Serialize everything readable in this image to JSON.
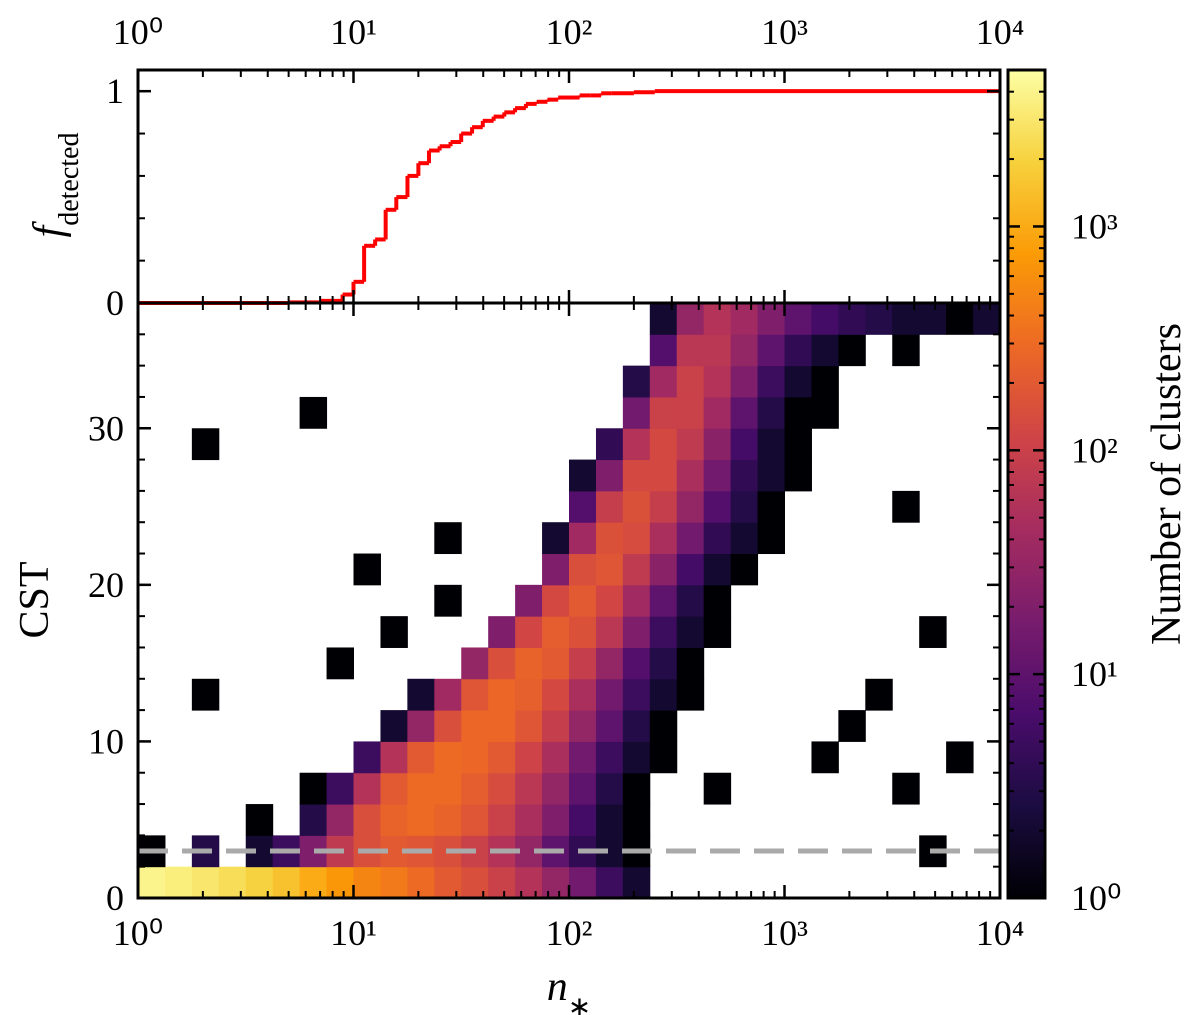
{
  "chart_data": [
    {
      "type": "step",
      "xscale": "log",
      "xlim": [
        1,
        10000
      ],
      "xticks": [
        {
          "value": 1,
          "label": "10⁰"
        },
        {
          "value": 10,
          "label": "10¹"
        },
        {
          "value": 100,
          "label": "10²"
        },
        {
          "value": 1000,
          "label": "10³"
        },
        {
          "value": 10000,
          "label": "10⁴"
        }
      ],
      "ylim": [
        0,
        1.1
      ],
      "yticks": [
        0,
        1
      ],
      "yminor": 5,
      "ylabel": "f",
      "ylabel_sub": "detected",
      "x": [
        1,
        5,
        7,
        8.9,
        10,
        11.2,
        12.6,
        14.1,
        15.8,
        17.8,
        20,
        22.4,
        25.1,
        28.2,
        31.6,
        35.5,
        39.8,
        44.7,
        50.1,
        56.2,
        63.1,
        70.8,
        79.4,
        89.1,
        100,
        112,
        126,
        141,
        158,
        200,
        250,
        10000
      ],
      "values": [
        0,
        0.003,
        0.01,
        0.04,
        0.1,
        0.27,
        0.3,
        0.44,
        0.5,
        0.6,
        0.66,
        0.72,
        0.74,
        0.76,
        0.8,
        0.83,
        0.86,
        0.88,
        0.9,
        0.92,
        0.94,
        0.95,
        0.96,
        0.97,
        0.97,
        0.98,
        0.98,
        0.99,
        0.99,
        0.995,
        1,
        1
      ],
      "color": "#ff0000"
    },
    {
      "type": "heatmap",
      "xscale": "log",
      "xlim": [
        1,
        10000
      ],
      "xticks": [
        {
          "value": 1,
          "label": "10⁰"
        },
        {
          "value": 10,
          "label": "10¹"
        },
        {
          "value": 100,
          "label": "10²"
        },
        {
          "value": 1000,
          "label": "10³"
        },
        {
          "value": 10000,
          "label": "10⁴"
        }
      ],
      "xlabel": "n",
      "xlabel_sub": "∗",
      "ylim": [
        0,
        38
      ],
      "yticks": [
        0,
        10,
        20,
        30
      ],
      "yminor": 5,
      "ylabel": "CST",
      "hline": 3,
      "hline_color": "#aaaaaa",
      "xbins": [
        1,
        1.334,
        1.778,
        2.371,
        3.162,
        4.217,
        5.623,
        7.499,
        10,
        13.34,
        17.78,
        23.71,
        31.62,
        42.17,
        56.23,
        74.99,
        100,
        133.4,
        177.8,
        237.1,
        316.2,
        421.7,
        562.3,
        749.9,
        1000,
        1334,
        1778,
        2371,
        3162,
        4217,
        5623,
        7499,
        10000
      ],
      "ybins": [
        0,
        2,
        4,
        6,
        8,
        10,
        12,
        14,
        16,
        18,
        20,
        22,
        24,
        26,
        28,
        30,
        32,
        34,
        36,
        38
      ],
      "counts": [
        [
          4000,
          3500,
          3000,
          2500,
          2000,
          1500,
          1000,
          700,
          500,
          400,
          300,
          200,
          150,
          100,
          60,
          30,
          15,
          5,
          2,
          null,
          null,
          null,
          null,
          null,
          null,
          null,
          null,
          null,
          null,
          null,
          null,
          null
        ],
        [
          1,
          null,
          3,
          null,
          2,
          5,
          20,
          80,
          150,
          200,
          180,
          150,
          100,
          60,
          30,
          10,
          4,
          2,
          1,
          null,
          null,
          null,
          null,
          null,
          null,
          null,
          null,
          null,
          null,
          1,
          null,
          null
        ],
        [
          null,
          null,
          null,
          null,
          1,
          null,
          3,
          30,
          150,
          250,
          300,
          250,
          180,
          100,
          50,
          20,
          6,
          2,
          1,
          null,
          null,
          null,
          null,
          null,
          null,
          null,
          null,
          null,
          null,
          null,
          null,
          null
        ],
        [
          null,
          null,
          null,
          null,
          null,
          null,
          1,
          5,
          60,
          200,
          300,
          300,
          220,
          140,
          70,
          30,
          10,
          3,
          1,
          null,
          null,
          1,
          null,
          null,
          null,
          null,
          null,
          null,
          1,
          null,
          null,
          null
        ],
        [
          null,
          null,
          null,
          null,
          null,
          null,
          null,
          null,
          5,
          60,
          200,
          300,
          280,
          200,
          110,
          50,
          15,
          5,
          2,
          1,
          null,
          null,
          null,
          null,
          null,
          1,
          null,
          null,
          null,
          null,
          1,
          null
        ],
        [
          null,
          null,
          null,
          null,
          null,
          null,
          null,
          null,
          null,
          2,
          30,
          150,
          280,
          280,
          180,
          90,
          30,
          10,
          3,
          1,
          null,
          null,
          null,
          null,
          null,
          null,
          1,
          null,
          null,
          null,
          null,
          null
        ],
        [
          null,
          null,
          1,
          null,
          null,
          null,
          null,
          null,
          null,
          null,
          2,
          40,
          180,
          280,
          230,
          130,
          50,
          15,
          5,
          2,
          1,
          null,
          null,
          null,
          null,
          null,
          null,
          1,
          null,
          null,
          null,
          null
        ],
        [
          null,
          null,
          null,
          null,
          null,
          null,
          null,
          1,
          null,
          null,
          null,
          null,
          30,
          150,
          250,
          200,
          90,
          30,
          8,
          3,
          1,
          null,
          null,
          null,
          null,
          null,
          null,
          null,
          null,
          null,
          null,
          null
        ],
        [
          null,
          null,
          null,
          null,
          null,
          null,
          null,
          null,
          null,
          1,
          null,
          null,
          null,
          20,
          120,
          220,
          160,
          70,
          20,
          5,
          2,
          1,
          null,
          null,
          null,
          null,
          null,
          null,
          null,
          1,
          null,
          null
        ],
        [
          null,
          null,
          null,
          null,
          null,
          null,
          null,
          null,
          null,
          null,
          null,
          1,
          null,
          null,
          20,
          130,
          200,
          120,
          40,
          10,
          3,
          1,
          null,
          null,
          null,
          null,
          null,
          null,
          null,
          null,
          null,
          null
        ],
        [
          null,
          null,
          null,
          null,
          null,
          null,
          null,
          null,
          1,
          null,
          null,
          null,
          null,
          null,
          null,
          20,
          150,
          180,
          80,
          25,
          6,
          2,
          1,
          null,
          null,
          null,
          null,
          null,
          null,
          null,
          null,
          null
        ],
        [
          null,
          null,
          null,
          null,
          null,
          null,
          null,
          null,
          null,
          null,
          null,
          1,
          null,
          null,
          null,
          2,
          40,
          160,
          140,
          50,
          15,
          4,
          2,
          1,
          null,
          null,
          null,
          null,
          null,
          null,
          null,
          null
        ],
        [
          null,
          null,
          null,
          null,
          null,
          null,
          null,
          null,
          null,
          null,
          null,
          null,
          null,
          null,
          null,
          null,
          8,
          90,
          160,
          90,
          30,
          8,
          3,
          1,
          null,
          null,
          null,
          null,
          1,
          null,
          null,
          null
        ],
        [
          null,
          null,
          null,
          null,
          null,
          null,
          null,
          null,
          null,
          null,
          null,
          null,
          null,
          null,
          null,
          null,
          2,
          20,
          130,
          130,
          50,
          15,
          4,
          2,
          1,
          null,
          null,
          null,
          null,
          null,
          null,
          null
        ],
        [
          null,
          null,
          1,
          null,
          null,
          null,
          null,
          null,
          null,
          null,
          null,
          null,
          null,
          null,
          null,
          null,
          null,
          4,
          60,
          130,
          80,
          25,
          6,
          2,
          1,
          null,
          null,
          null,
          null,
          null,
          null,
          null
        ],
        [
          null,
          null,
          null,
          null,
          null,
          null,
          1,
          null,
          null,
          null,
          null,
          null,
          null,
          null,
          null,
          null,
          null,
          null,
          15,
          100,
          100,
          40,
          10,
          3,
          1,
          1,
          null,
          null,
          null,
          null,
          null,
          null
        ],
        [
          null,
          null,
          null,
          null,
          null,
          null,
          null,
          null,
          null,
          null,
          null,
          null,
          null,
          null,
          null,
          null,
          null,
          null,
          3,
          40,
          100,
          60,
          20,
          5,
          2,
          1,
          null,
          null,
          null,
          null,
          null,
          null
        ],
        [
          null,
          null,
          null,
          null,
          null,
          null,
          null,
          null,
          null,
          null,
          null,
          null,
          null,
          null,
          null,
          null,
          null,
          null,
          null,
          8,
          70,
          70,
          30,
          10,
          4,
          2,
          1,
          null,
          1,
          null,
          null,
          null
        ],
        [
          null,
          null,
          null,
          null,
          null,
          null,
          null,
          null,
          null,
          null,
          null,
          null,
          null,
          null,
          null,
          null,
          null,
          null,
          null,
          2,
          30,
          60,
          40,
          20,
          10,
          6,
          4,
          3,
          2,
          2,
          1,
          2
        ]
      ],
      "colorbar": {
        "label": "Number of clusters",
        "scale": "log",
        "lim": [
          1,
          5000
        ],
        "ticks": [
          {
            "value": 1,
            "label": "10⁰"
          },
          {
            "value": 10,
            "label": "10¹"
          },
          {
            "value": 100,
            "label": "10²"
          },
          {
            "value": 1000,
            "label": "10³"
          }
        ],
        "colormap": [
          "#000004",
          "#1b0c41",
          "#4a0c6b",
          "#781c6d",
          "#a52c60",
          "#cf4446",
          "#ed6925",
          "#fb9b06",
          "#f7d13d",
          "#fcffa4"
        ]
      }
    }
  ]
}
